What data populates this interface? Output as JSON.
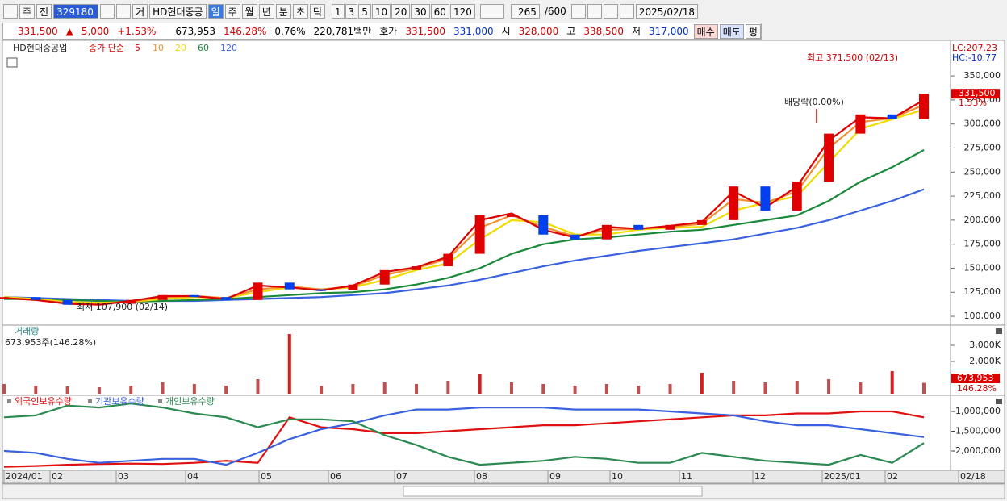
{
  "toolbar": {
    "market": "주",
    "scope": "전",
    "code": "329180",
    "tabs": [
      "거",
      "HD현대중공"
    ],
    "periods": [
      "일",
      "주",
      "월",
      "년",
      "분",
      "초",
      "틱"
    ],
    "intervals": [
      "1",
      "3",
      "5",
      "10",
      "20",
      "30",
      "60",
      "120"
    ],
    "count": "265",
    "max": "/600",
    "date": "2025/02/18"
  },
  "info_bar": {
    "price": "331,500",
    "arrow": "▲",
    "change": "5,000",
    "change_pct": "+1.53%",
    "volume": "673,953",
    "volume_ratio": "146.28%",
    "turnover": "0.76%",
    "amount": "220,781백만",
    "quote_label": "호가",
    "ask": "331,500",
    "bid": "331,000",
    "open_label": "시",
    "open": "328,000",
    "high_label": "고",
    "high": "338,500",
    "low_label": "저",
    "low": "317,000",
    "buttons": [
      "매수",
      "매도",
      "평"
    ]
  },
  "x_labels": [
    "2024/01",
    "02",
    "03",
    "04",
    "05",
    "06",
    "07",
    "08",
    "09",
    "10",
    "11",
    "12",
    "2025/01",
    "02",
    "02/18"
  ],
  "chart_data": [
    {
      "type": "candlestick",
      "title": "HD현대중공업",
      "subtitle": "종가 단순",
      "up_color": "#e00000",
      "down_color": "#0040f0",
      "values": [
        120000,
        117000,
        112000,
        113000,
        117000,
        122000,
        120000,
        117000,
        135000,
        128000,
        127000,
        133000,
        148000,
        152000,
        165000,
        205000,
        205000,
        185000,
        180000,
        195000,
        190000,
        195000,
        200000,
        235000,
        210000,
        240000,
        290000,
        310000,
        305000,
        331500
      ],
      "series": [
        {
          "name": "5",
          "color": "#dd0000",
          "values": [
            119000,
            117000,
            113000,
            112000,
            116000,
            121000,
            121000,
            118000,
            132000,
            130000,
            127000,
            132000,
            146000,
            151000,
            162000,
            200000,
            207000,
            190000,
            182000,
            193000,
            191000,
            194000,
            198000,
            230000,
            213000,
            235000,
            283000,
            307000,
            306000,
            325000
          ]
        },
        {
          "name": "10",
          "color": "#f09030",
          "values": [
            119000,
            117000,
            114000,
            113000,
            115000,
            120000,
            121000,
            119000,
            128000,
            131000,
            128000,
            131000,
            143000,
            150000,
            160000,
            192000,
            205000,
            193000,
            183000,
            190000,
            191000,
            193000,
            196000,
            222000,
            218000,
            230000,
            275000,
            302000,
            306000,
            320000
          ]
        },
        {
          "name": "20",
          "color": "#f0dc00",
          "values": [
            120000,
            118000,
            115000,
            114000,
            115000,
            118000,
            120000,
            119000,
            125000,
            130000,
            128000,
            130000,
            138000,
            148000,
            155000,
            180000,
            200000,
            198000,
            185000,
            185000,
            190000,
            192000,
            193000,
            210000,
            218000,
            225000,
            260000,
            295000,
            305000,
            315000
          ]
        },
        {
          "name": "60",
          "color": "#1a8a3a",
          "values": [
            118000,
            118000,
            117000,
            116000,
            115000,
            116000,
            117000,
            118000,
            120000,
            122000,
            124000,
            125000,
            128000,
            133000,
            140000,
            150000,
            165000,
            175000,
            180000,
            182000,
            185000,
            188000,
            190000,
            195000,
            200000,
            205000,
            220000,
            240000,
            255000,
            273000
          ]
        },
        {
          "name": "120",
          "color": "#3a62e0",
          "values": [
            120000,
            119000,
            118000,
            117000,
            116000,
            116000,
            116000,
            117000,
            118000,
            119000,
            120000,
            122000,
            124000,
            128000,
            132000,
            138000,
            145000,
            152000,
            158000,
            163000,
            168000,
            172000,
            176000,
            180000,
            186000,
            192000,
            200000,
            210000,
            220000,
            232000
          ]
        }
      ],
      "ylim": [
        90800,
        382000
      ],
      "yticks": [
        {
          "value": 100000,
          "label": "100,000"
        },
        {
          "value": 125000,
          "label": "125,000"
        },
        {
          "value": 150000,
          "label": "150,000"
        },
        {
          "value": 175000,
          "label": "175,000"
        },
        {
          "value": 200000,
          "label": "200,000"
        },
        {
          "value": 225000,
          "label": "225,000"
        },
        {
          "value": 250000,
          "label": "250,000"
        },
        {
          "value": 275000,
          "label": "275,000"
        },
        {
          "value": 300000,
          "label": "300,000"
        },
        {
          "value": 325000,
          "label": "325,000"
        },
        {
          "value": 350000,
          "label": "350,000"
        }
      ],
      "annotations": {
        "high": "최고 371,500 (02/13)",
        "low": "최저 107,900 (02/14)",
        "dividend": "배당락(0.00%)"
      },
      "side_labels": [
        "LC:207.23",
        "HC:-10.77"
      ],
      "last_label": "331,500",
      "last_pct": "1.53%"
    },
    {
      "type": "bar",
      "title": "거래량",
      "subtitle": "673,953주(146.28%)",
      "color": "#e03030",
      "values": [
        600000,
        500000,
        450000,
        400000,
        500000,
        700000,
        600000,
        500000,
        900000,
        3700000,
        500000,
        600000,
        700000,
        600000,
        800000,
        1200000,
        700000,
        600000,
        500000,
        600000,
        500000,
        600000,
        1300000,
        800000,
        700000,
        800000,
        900000,
        700000,
        1400000,
        673953
      ],
      "ylim": [
        0,
        4000000
      ],
      "yticks": [
        {
          "value": 2000000,
          "label": "2,000K"
        },
        {
          "value": 3000000,
          "label": "3,000K"
        }
      ],
      "last_label": "673,953",
      "last_pct": "146.28%"
    },
    {
      "type": "line",
      "series": [
        {
          "name": "외국인보유수량",
          "color": "#e01010",
          "values": [
            -2400000,
            -2380000,
            -2350000,
            -2330000,
            -2320000,
            -2330000,
            -2300000,
            -2250000,
            -2300000,
            -1150000,
            -1400000,
            -1450000,
            -1550000,
            -1550000,
            -1500000,
            -1450000,
            -1400000,
            -1350000,
            -1350000,
            -1300000,
            -1250000,
            -1200000,
            -1150000,
            -1100000,
            -1100000,
            -1050000,
            -1050000,
            -1000000,
            -1000000,
            -1150000
          ]
        },
        {
          "name": "기관보유수량",
          "color": "#3a62e0",
          "values": [
            -2000000,
            -2050000,
            -2200000,
            -2300000,
            -2250000,
            -2200000,
            -2200000,
            -2350000,
            -2050000,
            -1700000,
            -1450000,
            -1300000,
            -1100000,
            -950000,
            -950000,
            -900000,
            -900000,
            -900000,
            -950000,
            -950000,
            -950000,
            -1000000,
            -1050000,
            -1100000,
            -1250000,
            -1350000,
            -1350000,
            -1450000,
            -1550000,
            -1650000
          ]
        },
        {
          "name": "개인보유수량",
          "color": "#2a8a50",
          "values": [
            -1150000,
            -1100000,
            -850000,
            -900000,
            -800000,
            -900000,
            -1050000,
            -1150000,
            -1400000,
            -1200000,
            -1200000,
            -1250000,
            -1600000,
            -1850000,
            -2150000,
            -2350000,
            -2300000,
            -2250000,
            -2150000,
            -2200000,
            -2300000,
            -2300000,
            -2050000,
            -2150000,
            -2250000,
            -2300000,
            -2350000,
            -2100000,
            -2300000,
            -1800000
          ]
        }
      ],
      "ylim": [
        -2490000,
        -653000
      ],
      "yticks": [
        {
          "value": -1000000,
          "label": "-1,000,000"
        },
        {
          "value": -1500000,
          "label": "-1,500,000"
        },
        {
          "value": -2000000,
          "label": "-2,000,000"
        }
      ]
    }
  ]
}
